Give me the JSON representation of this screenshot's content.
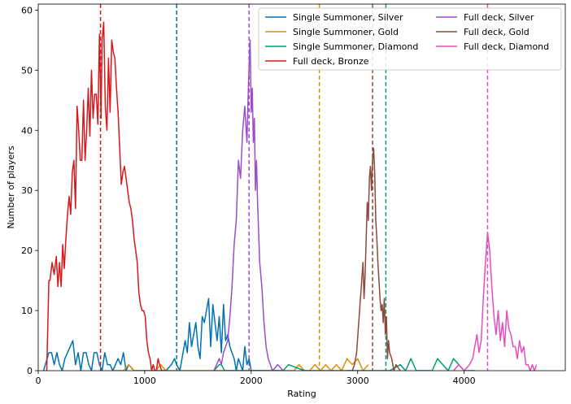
{
  "chart_data": {
    "type": "line",
    "title": "",
    "xlabel": "Rating",
    "ylabel": "Number of players",
    "xlim": [
      0,
      4950
    ],
    "ylim": [
      0,
      61
    ],
    "xticks": [
      0,
      1000,
      2000,
      3000,
      4000
    ],
    "yticks": [
      0,
      10,
      20,
      30,
      40,
      50,
      60
    ],
    "xtick_labels": [
      "0",
      "1000",
      "2000",
      "3000",
      "4000"
    ],
    "ytick_labels": [
      "0",
      "10",
      "20",
      "30",
      "40",
      "50",
      "60"
    ],
    "grid": false,
    "legend_position": "top-right",
    "series": [
      {
        "name": "Single Summoner, Silver",
        "color": "#0173b2",
        "mean": 1300,
        "x": [
          50,
          100,
          125,
          150,
          175,
          200,
          225,
          250,
          275,
          300,
          325,
          350,
          375,
          400,
          425,
          450,
          475,
          500,
          525,
          550,
          575,
          600,
          625,
          650,
          675,
          700,
          725,
          750,
          775,
          800,
          825,
          850,
          900,
          950,
          1000,
          1050,
          1100,
          1150,
          1200,
          1250,
          1280,
          1300,
          1330,
          1360,
          1380,
          1400,
          1420,
          1440,
          1460,
          1480,
          1500,
          1520,
          1540,
          1560,
          1580,
          1600,
          1620,
          1640,
          1660,
          1680,
          1700,
          1720,
          1740,
          1760,
          1780,
          1800,
          1820,
          1840,
          1860,
          1880,
          1900,
          1920,
          1940,
          1960,
          1980,
          2000,
          2050,
          2100
        ],
        "y": [
          0,
          3,
          3,
          1,
          3,
          1,
          0,
          2,
          3,
          4,
          5,
          1,
          3,
          0,
          3,
          3,
          1,
          0,
          3,
          3,
          1,
          0,
          3,
          1,
          1,
          0,
          1,
          2,
          1,
          3,
          0,
          1,
          0,
          0,
          0,
          0,
          0,
          0,
          0,
          1,
          2,
          1,
          0,
          3,
          5,
          3,
          8,
          4,
          6,
          8,
          4,
          2,
          9,
          8,
          10,
          12,
          4,
          11,
          8,
          5,
          9,
          3,
          11,
          5,
          6,
          4,
          3,
          2,
          0,
          2,
          1,
          0,
          4,
          1,
          2,
          0,
          0,
          0
        ]
      },
      {
        "name": "Single Summoner, Gold",
        "color": "#de8f05",
        "mean": 2640,
        "x": [
          700,
          800,
          850,
          900,
          950,
          1000,
          1050,
          1100,
          1150,
          1200,
          1250,
          2300,
          2400,
          2450,
          2500,
          2550,
          2600,
          2650,
          2700,
          2750,
          2800,
          2850,
          2900,
          2950,
          3000,
          3050,
          3100
        ],
        "y": [
          0,
          0,
          1,
          0,
          0,
          0,
          0,
          0,
          1,
          0,
          0,
          0,
          0,
          1,
          0,
          0,
          1,
          0,
          1,
          0,
          1,
          0,
          2,
          1,
          2,
          0,
          1
        ]
      },
      {
        "name": "Single Summoner, Diamond",
        "color": "#029e73",
        "mean": 3265,
        "x": [
          1650,
          1700,
          1720,
          1750,
          1800,
          2100,
          2300,
          2350,
          2500,
          3300,
          3400,
          3450,
          3500,
          3550,
          3600,
          3650,
          3700,
          3750,
          3800,
          3850,
          3900,
          3950,
          4000,
          4100
        ],
        "y": [
          0,
          1,
          1,
          0,
          0,
          0,
          0,
          1,
          0,
          0,
          1,
          0,
          2,
          0,
          0,
          0,
          0,
          2,
          1,
          0,
          2,
          1,
          0,
          0
        ]
      },
      {
        "name": "Full deck, Bronze",
        "color": "#d7191c",
        "mean": 585,
        "x": [
          80,
          100,
          110,
          130,
          150,
          170,
          185,
          200,
          215,
          230,
          245,
          260,
          275,
          290,
          305,
          320,
          335,
          350,
          365,
          380,
          395,
          410,
          425,
          440,
          455,
          470,
          485,
          500,
          515,
          530,
          545,
          560,
          575,
          590,
          600,
          615,
          630,
          645,
          660,
          675,
          690,
          705,
          720,
          735,
          750,
          765,
          780,
          795,
          810,
          825,
          840,
          855,
          870,
          885,
          900,
          915,
          930,
          945,
          960,
          975,
          990,
          1005,
          1020,
          1035,
          1050,
          1065,
          1080,
          1095,
          1110,
          1125,
          1140,
          1160,
          1180,
          1200
        ],
        "y": [
          0,
          15,
          15,
          18,
          16,
          19,
          14,
          18,
          14,
          21,
          17,
          22,
          26,
          29,
          26,
          33,
          35,
          27,
          44,
          40,
          35,
          35,
          45,
          35,
          40,
          47,
          39,
          50,
          42,
          46,
          46,
          41,
          56,
          42,
          55,
          58,
          44,
          40,
          52,
          43,
          55,
          53,
          52,
          47,
          43,
          37,
          31,
          33,
          34,
          32,
          30,
          28,
          27,
          25,
          22,
          20,
          18,
          13,
          11,
          10,
          10,
          9,
          5,
          3,
          2,
          0,
          1,
          0,
          0,
          2,
          1,
          0,
          0,
          0
        ]
      },
      {
        "name": "Full deck, Silver",
        "color": "#9b4dca",
        "mean": 1980,
        "x": [
          1650,
          1700,
          1720,
          1740,
          1760,
          1780,
          1800,
          1820,
          1840,
          1860,
          1880,
          1900,
          1920,
          1940,
          1960,
          1975,
          1990,
          2000,
          2010,
          2020,
          2030,
          2040,
          2050,
          2060,
          2080,
          2100,
          2120,
          2140,
          2160,
          2180,
          2200,
          2250,
          2300
        ],
        "y": [
          0,
          2,
          1,
          3,
          4,
          5,
          9,
          14,
          21,
          25,
          35,
          32,
          40,
          44,
          38,
          48,
          55,
          43,
          47,
          38,
          42,
          30,
          35,
          28,
          18,
          14,
          8,
          4,
          2,
          1,
          0,
          1,
          0
        ]
      },
      {
        "name": "Full deck, Gold",
        "color": "#8c4a3c",
        "mean": 3140,
        "x": [
          2900,
          2950,
          2970,
          2990,
          3010,
          3030,
          3050,
          3060,
          3070,
          3080,
          3090,
          3100,
          3110,
          3120,
          3130,
          3140,
          3150,
          3160,
          3170,
          3180,
          3190,
          3200,
          3210,
          3220,
          3230,
          3240,
          3250,
          3260,
          3270,
          3280,
          3290,
          3300,
          3320,
          3340,
          3360,
          3400
        ],
        "y": [
          0,
          0,
          1,
          3,
          8,
          13,
          18,
          12,
          16,
          22,
          28,
          25,
          32,
          34,
          30,
          35,
          37,
          33,
          25,
          22,
          18,
          15,
          12,
          10,
          11,
          8,
          12,
          6,
          9,
          2,
          5,
          3,
          2,
          0,
          1,
          0
        ]
      },
      {
        "name": "Full deck, Diamond",
        "color": "#e34fbd",
        "mean": 4220,
        "x": [
          3900,
          3950,
          4000,
          4050,
          4080,
          4100,
          4120,
          4140,
          4160,
          4180,
          4200,
          4220,
          4240,
          4260,
          4280,
          4300,
          4320,
          4340,
          4360,
          4380,
          4400,
          4420,
          4440,
          4460,
          4480,
          4500,
          4520,
          4540,
          4560,
          4580,
          4600,
          4620,
          4640,
          4660,
          4680
        ],
        "y": [
          0,
          1,
          0,
          1,
          2,
          4,
          6,
          3,
          5,
          12,
          18,
          23,
          20,
          14,
          9,
          6,
          10,
          5,
          8,
          4,
          10,
          7,
          6,
          4,
          4,
          2,
          5,
          3,
          4,
          1,
          1,
          0,
          1,
          0,
          1
        ]
      }
    ]
  }
}
